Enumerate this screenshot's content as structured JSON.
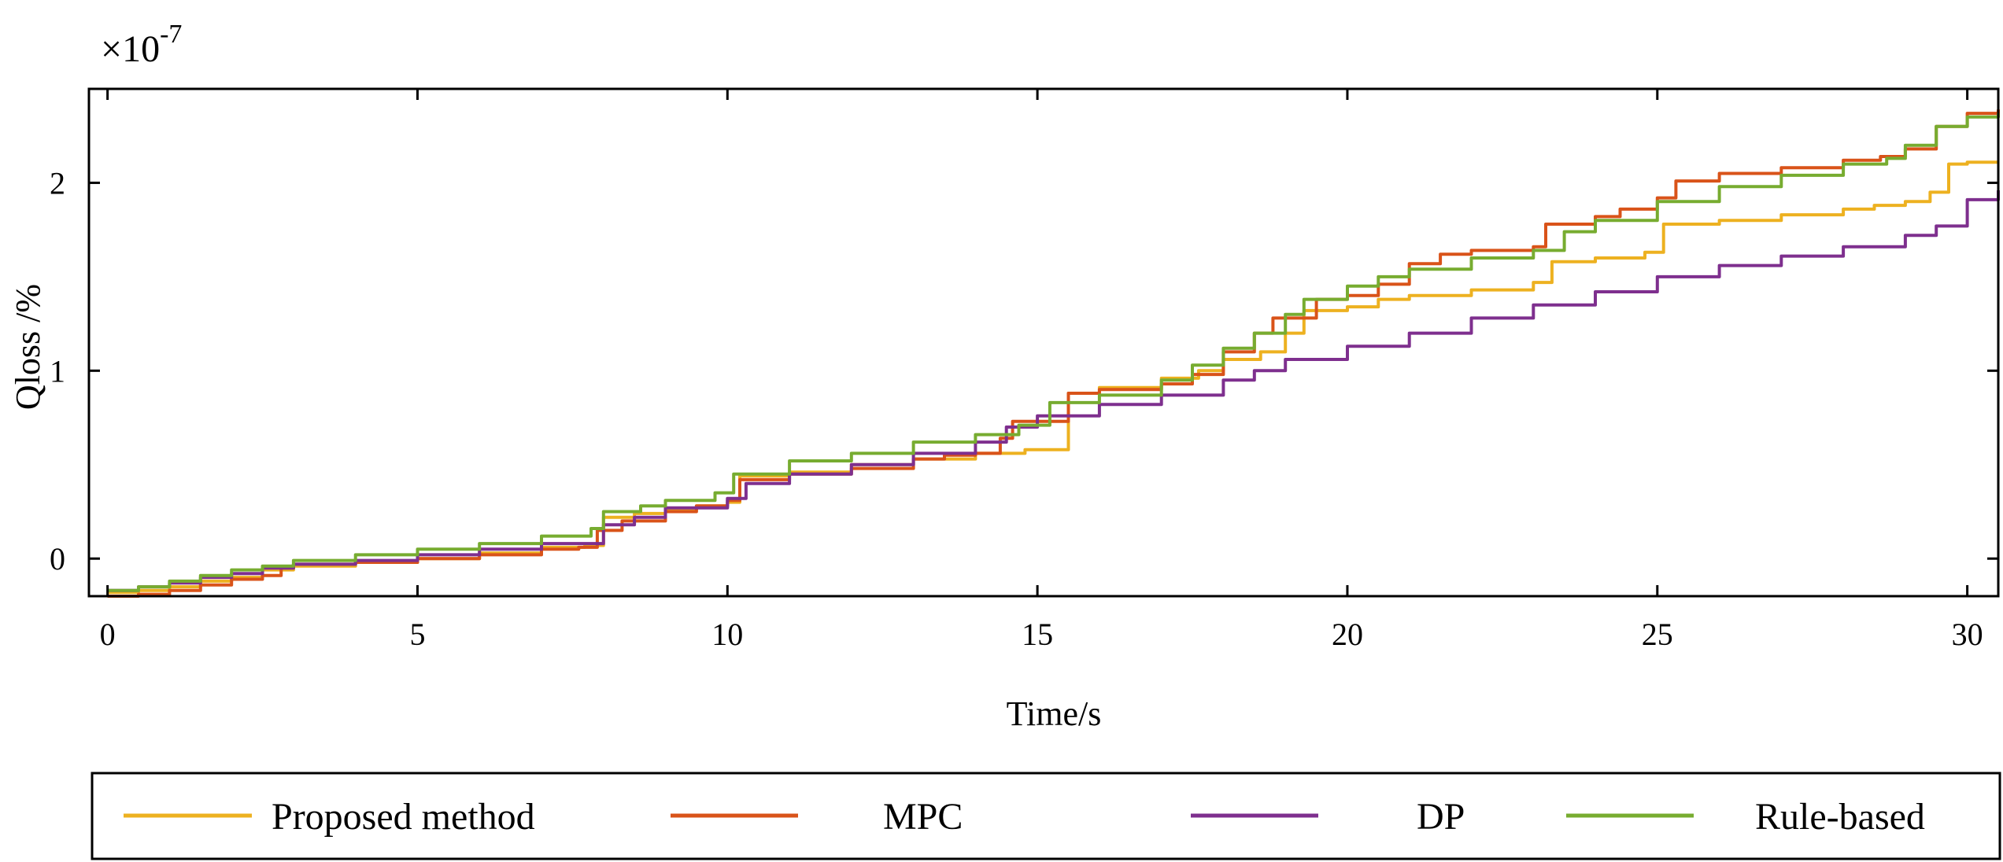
{
  "chart_data": {
    "type": "line",
    "title": "",
    "xlabel": "Time/s",
    "ylabel": "Qloss /%",
    "exponent_label": "×10",
    "exponent_power": "-7",
    "xlim": [
      -0.3,
      30.5
    ],
    "ylim": [
      -0.2,
      2.5
    ],
    "xticks": [
      0,
      5,
      10,
      15,
      20,
      25,
      30
    ],
    "xtick_labels": [
      "0",
      "5",
      "10",
      "15",
      "20",
      "25",
      "30"
    ],
    "yticks": [
      0,
      1,
      2
    ],
    "ytick_labels": [
      "0",
      "1",
      "2"
    ],
    "grid": false,
    "legend_position": "bottom",
    "series": [
      {
        "name": "Proposed method",
        "color": "#EDB120",
        "x": [
          0,
          0.5,
          1,
          1.5,
          2,
          2.5,
          3,
          4,
          5,
          6,
          7,
          7.7,
          8.0,
          8.5,
          9,
          9.5,
          10,
          10.2,
          11,
          12,
          13,
          14,
          14.8,
          15.5,
          16,
          17,
          17.6,
          18,
          18.6,
          19,
          19.3,
          20,
          20.5,
          21,
          22,
          23,
          23.3,
          24,
          24.8,
          25.1,
          26,
          27,
          28,
          28.5,
          29,
          29.4,
          29.7,
          30,
          30.5
        ],
        "values": [
          -0.18,
          -0.17,
          -0.15,
          -0.12,
          -0.1,
          -0.06,
          -0.04,
          -0.02,
          0.0,
          0.03,
          0.06,
          0.07,
          0.22,
          0.24,
          0.26,
          0.28,
          0.3,
          0.44,
          0.46,
          0.5,
          0.53,
          0.56,
          0.58,
          0.88,
          0.91,
          0.96,
          1.0,
          1.06,
          1.1,
          1.2,
          1.32,
          1.34,
          1.38,
          1.4,
          1.43,
          1.47,
          1.58,
          1.6,
          1.63,
          1.78,
          1.8,
          1.83,
          1.86,
          1.88,
          1.9,
          1.95,
          2.1,
          2.11,
          2.11
        ]
      },
      {
        "name": "MPC",
        "color": "#D95319",
        "x": [
          0,
          0.5,
          1,
          1.5,
          2,
          2.5,
          2.8,
          3,
          4,
          5,
          6,
          7,
          7.6,
          7.9,
          8.3,
          9,
          9.5,
          10,
          10.2,
          11,
          12,
          13,
          13.5,
          14,
          14.4,
          14.6,
          15.5,
          16,
          17,
          17.5,
          18,
          18.5,
          18.8,
          19.5,
          20,
          20.5,
          21,
          21.5,
          22,
          23,
          23.2,
          24,
          24.4,
          25,
          25.3,
          26,
          27,
          28,
          28.6,
          29,
          29.5,
          30,
          30.5
        ],
        "values": [
          -0.2,
          -0.19,
          -0.17,
          -0.14,
          -0.11,
          -0.09,
          -0.05,
          -0.03,
          -0.02,
          0.0,
          0.02,
          0.05,
          0.06,
          0.15,
          0.2,
          0.25,
          0.28,
          0.31,
          0.42,
          0.45,
          0.48,
          0.53,
          0.55,
          0.56,
          0.64,
          0.73,
          0.88,
          0.9,
          0.93,
          0.98,
          1.1,
          1.2,
          1.28,
          1.38,
          1.4,
          1.46,
          1.57,
          1.62,
          1.64,
          1.66,
          1.78,
          1.82,
          1.86,
          1.92,
          2.01,
          2.05,
          2.08,
          2.12,
          2.14,
          2.18,
          2.3,
          2.37,
          2.39
        ]
      },
      {
        "name": "DP",
        "color": "#7E2F8E",
        "x": [
          0,
          0.5,
          1,
          1.5,
          2,
          2.5,
          3,
          4,
          5,
          6,
          7,
          8,
          8.5,
          9,
          10,
          10.3,
          11,
          12,
          13,
          14,
          14.5,
          15,
          16,
          17,
          18,
          18.5,
          19,
          20,
          21,
          22,
          23,
          24,
          25,
          26,
          27,
          28,
          29,
          29.5,
          30,
          30.5
        ],
        "values": [
          -0.17,
          -0.15,
          -0.13,
          -0.1,
          -0.08,
          -0.05,
          -0.03,
          -0.01,
          0.02,
          0.05,
          0.08,
          0.18,
          0.22,
          0.27,
          0.32,
          0.4,
          0.45,
          0.5,
          0.56,
          0.62,
          0.7,
          0.76,
          0.82,
          0.87,
          0.95,
          1.0,
          1.06,
          1.13,
          1.2,
          1.28,
          1.35,
          1.42,
          1.5,
          1.56,
          1.61,
          1.66,
          1.72,
          1.77,
          1.91,
          1.96
        ]
      },
      {
        "name": "Rule-based",
        "color": "#77AC30",
        "x": [
          0,
          0.5,
          1,
          1.5,
          2,
          2.5,
          3,
          4,
          5,
          6,
          7,
          7.8,
          8.0,
          8.6,
          9,
          9.8,
          10.1,
          11,
          12,
          13,
          14,
          14.7,
          15.2,
          16,
          17,
          17.5,
          18,
          18.5,
          19,
          19.3,
          20,
          20.5,
          21,
          22,
          23,
          23.5,
          24,
          25,
          26,
          27,
          28,
          28.7,
          29,
          29.5,
          30,
          30.5
        ],
        "values": [
          -0.17,
          -0.15,
          -0.12,
          -0.09,
          -0.06,
          -0.04,
          -0.01,
          0.02,
          0.05,
          0.08,
          0.12,
          0.16,
          0.25,
          0.28,
          0.31,
          0.35,
          0.45,
          0.52,
          0.56,
          0.62,
          0.66,
          0.71,
          0.83,
          0.87,
          0.95,
          1.03,
          1.12,
          1.2,
          1.3,
          1.38,
          1.45,
          1.5,
          1.54,
          1.6,
          1.64,
          1.74,
          1.8,
          1.9,
          1.98,
          2.04,
          2.1,
          2.13,
          2.2,
          2.3,
          2.35,
          2.37
        ]
      }
    ]
  }
}
